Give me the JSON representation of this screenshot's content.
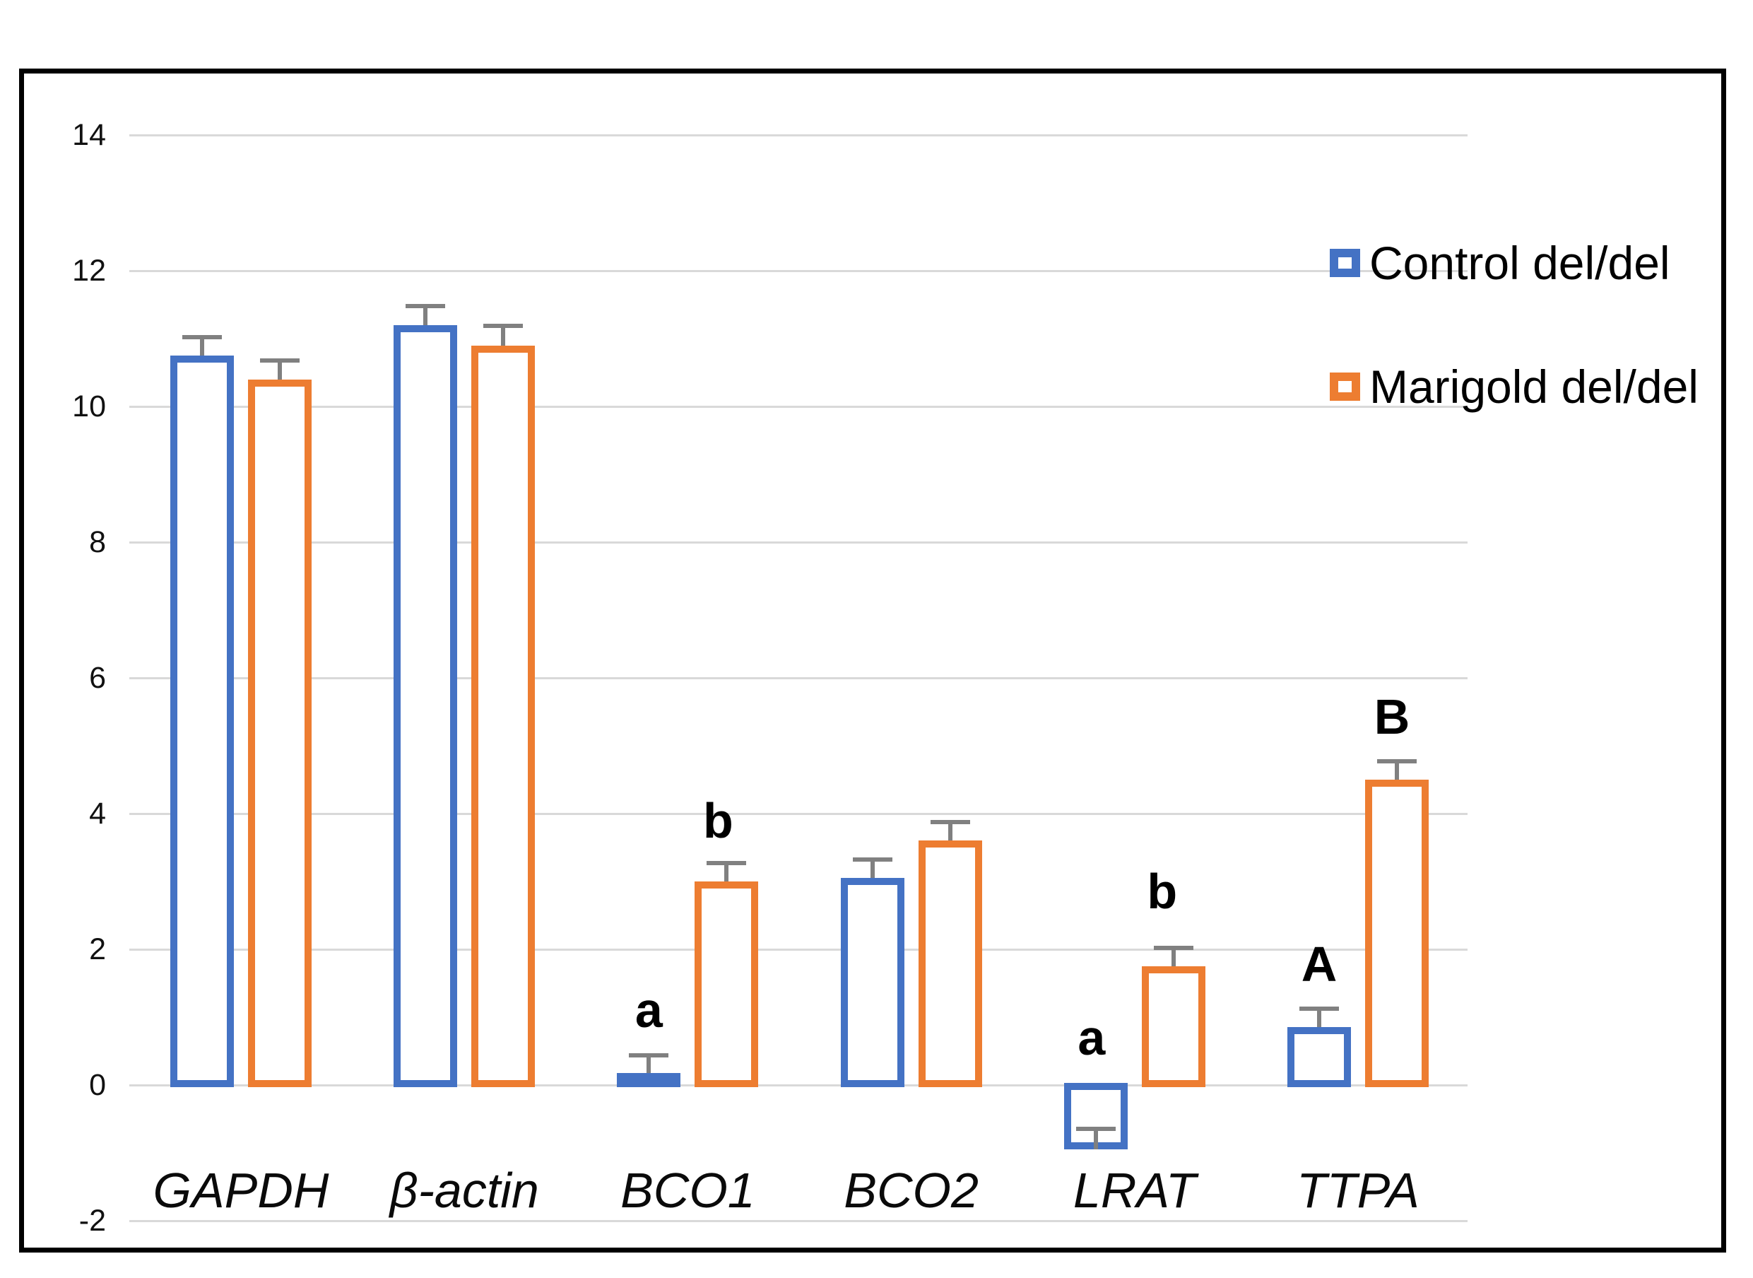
{
  "chart_data": {
    "type": "bar",
    "title": "",
    "categories": [
      "GAPDH",
      "β-actin",
      "BCO1",
      "BCO2",
      "LRAT",
      "TTPA"
    ],
    "series": [
      {
        "name": "Control del/del",
        "color": "#4472C4",
        "values": [
          10.75,
          11.2,
          0.18,
          3.05,
          -0.95,
          0.85
        ],
        "errors": [
          0.27,
          0.28,
          0.26,
          0.27,
          0.3,
          0.28
        ]
      },
      {
        "name": "Marigold del/del",
        "color": "#ED7D31",
        "values": [
          10.4,
          10.9,
          3.0,
          3.6,
          1.75,
          4.5
        ],
        "errors": [
          0.28,
          0.29,
          0.27,
          0.28,
          0.27,
          0.27
        ]
      }
    ],
    "significance_labels": [
      {
        "category_index": 2,
        "series_index": 0,
        "text": "a",
        "v": 1.1,
        "dx": 0
      },
      {
        "category_index": 2,
        "series_index": 1,
        "text": "b",
        "v": 3.9,
        "dx": -12
      },
      {
        "category_index": 4,
        "series_index": 0,
        "text": "a",
        "v": 0.7,
        "dx": -6
      },
      {
        "category_index": 4,
        "series_index": 1,
        "text": "b",
        "v": 2.85,
        "dx": -16
      },
      {
        "category_index": 5,
        "series_index": 0,
        "text": "A",
        "v": 1.78,
        "dx": 0
      },
      {
        "category_index": 5,
        "series_index": 1,
        "text": "B",
        "v": 5.43,
        "dx": -7
      }
    ],
    "y_axis": {
      "min": -2,
      "max": 14,
      "step": 2,
      "tick_labels": [
        "14",
        "12",
        "10",
        "8",
        "6",
        "4",
        "2",
        "0",
        "-2"
      ],
      "tick_values": [
        14,
        12,
        10,
        8,
        6,
        4,
        2,
        0,
        -2
      ]
    },
    "legend": {
      "position": "upper-right",
      "items": [
        {
          "label": "Control del/del",
          "color": "#4472C4"
        },
        {
          "label": "Marigold del/del",
          "color": "#ED7D31"
        }
      ]
    },
    "grid": true,
    "styles": {
      "gridline_color": "#D9D9D9",
      "error_bar_color": "#808080",
      "bar_fill": "#FFFFFF",
      "text_color": "#111111"
    }
  }
}
